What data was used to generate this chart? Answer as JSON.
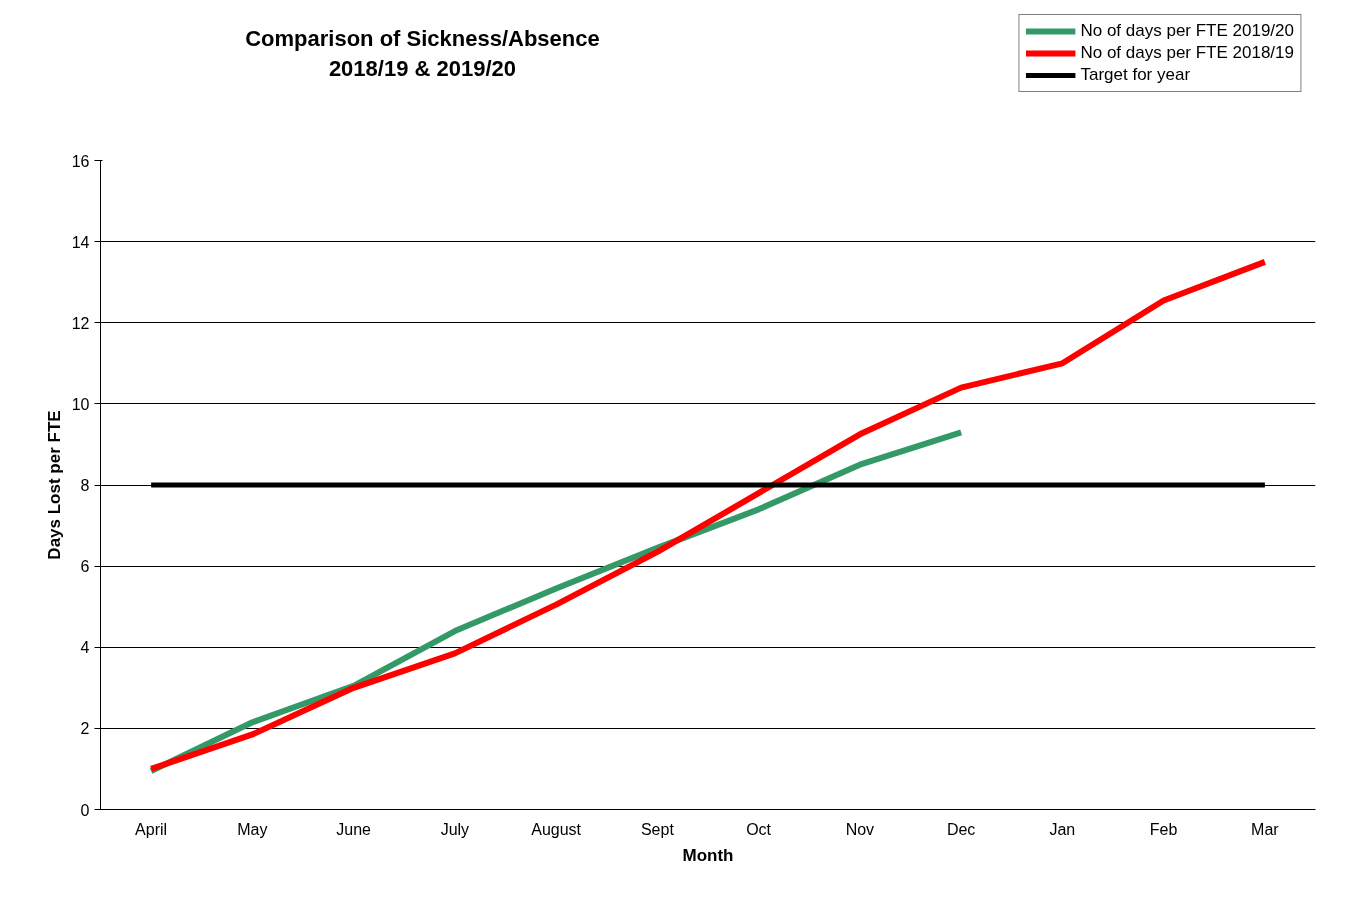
{
  "chart_data": {
    "type": "line",
    "title": "Comparison of Sickness/Absence\n2018/19 & 2019/20",
    "xlabel": "Month",
    "ylabel": "Days Lost per FTE",
    "categories": [
      "April",
      "May",
      "June",
      "July",
      "August",
      "Sept",
      "Oct",
      "Nov",
      "Dec",
      "Jan",
      "Feb",
      "Mar"
    ],
    "series": [
      {
        "name": "No of days per FTE 2019/20",
        "color": "#339966",
        "values": [
          0.95,
          2.15,
          3.05,
          4.4,
          5.45,
          6.45,
          7.4,
          8.5,
          9.3,
          null,
          null,
          null
        ]
      },
      {
        "name": "No of days per FTE 2018/19",
        "color": "#ff0000",
        "values": [
          1.0,
          1.85,
          3.0,
          3.85,
          5.05,
          6.35,
          7.8,
          9.25,
          10.4,
          11.0,
          12.55,
          13.5
        ]
      }
    ],
    "ref_lines": [
      {
        "axis": "y",
        "value": 8,
        "label": "Target for year",
        "color": "#000000"
      }
    ],
    "ylim": [
      0,
      16
    ],
    "yticks": [
      0,
      2,
      4,
      6,
      8,
      10,
      12,
      14,
      16
    ],
    "grid": "y",
    "legend": "top right",
    "marker": "none",
    "line_style": "solid"
  }
}
